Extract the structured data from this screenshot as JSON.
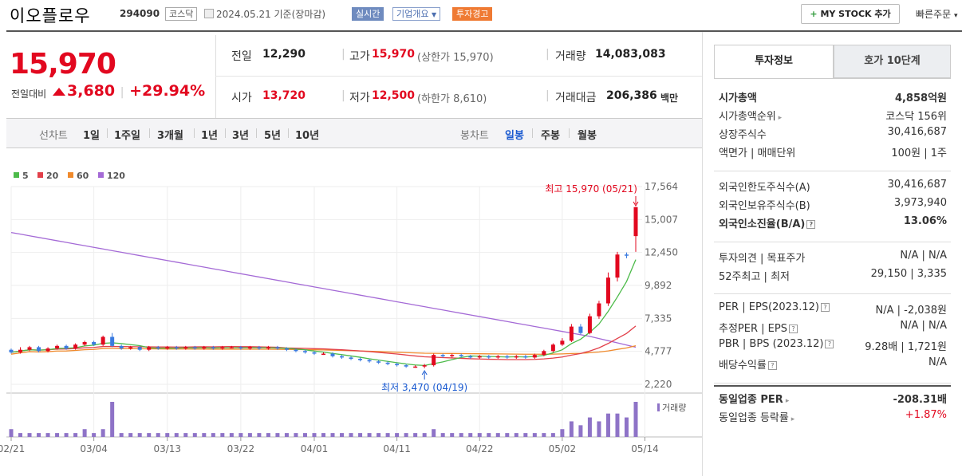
{
  "header": {
    "company_name": "이오플로우",
    "code": "294090",
    "market": "코스닥",
    "date": "2024.05.21 기준(장마감)",
    "badge_realtime": "실시간",
    "badge_overview": "기업개요",
    "badge_warning": "투자경고",
    "mystock_label": "MY STOCK 추가",
    "quick_order": "빠른주문"
  },
  "quote": {
    "price": "15,970",
    "prev_label": "전일대비",
    "change": "3,680",
    "change_pct": "+29.94%",
    "prev_close_label": "전일",
    "prev_close": "12,290",
    "high_label": "고가",
    "high": "15,970",
    "upper_limit": "(상한가 15,970)",
    "volume_label": "거래량",
    "volume": "14,083,083",
    "open_label": "시가",
    "open": "13,720",
    "low_label": "저가",
    "low": "12,500",
    "lower_limit": "(하한가 8,610)",
    "amount_label": "거래대금",
    "amount": "206,386",
    "amount_unit": "백만"
  },
  "period_tabs": {
    "label": "선차트",
    "items": [
      "1일",
      "1주일",
      "3개월",
      "1년",
      "3년",
      "5년",
      "10년"
    ],
    "candle_label": "봉차트",
    "candle_items": [
      "일봉",
      "주봉",
      "월봉"
    ]
  },
  "chart_data": {
    "type": "candlestick",
    "legend": [
      "5",
      "20",
      "60",
      "120"
    ],
    "colors": {
      "ma5": "#4dbb4a",
      "ma20": "#e2404a",
      "ma60": "#f08a2c",
      "ma120": "#a46ad6",
      "up": "#e2081f",
      "down": "#3b7be0"
    },
    "y_ticks": [
      "17,564",
      "15,007",
      "12,450",
      "9,892",
      "7,335",
      "4,777",
      "2,220"
    ],
    "x_ticks": [
      "02/21",
      "03/04",
      "03/13",
      "03/22",
      "04/01",
      "04/11",
      "04/22",
      "05/02",
      "05/14"
    ],
    "ylim": [
      2220,
      17564
    ],
    "high_annotation": "최고 15,970 (05/21)",
    "low_annotation": "최저 3,470 (04/19)",
    "volume_label": "거래량",
    "candles": [
      [
        4900,
        4700,
        5000,
        4600
      ],
      [
        4700,
        4900,
        5100,
        4600
      ],
      [
        4900,
        5100,
        5200,
        4800
      ],
      [
        5100,
        4800,
        5200,
        4700
      ],
      [
        4800,
        5000,
        5100,
        4700
      ],
      [
        5000,
        5200,
        5300,
        4900
      ],
      [
        5200,
        5000,
        5300,
        4900
      ],
      [
        5000,
        5300,
        5400,
        4900
      ],
      [
        5300,
        5500,
        5600,
        5200
      ],
      [
        5500,
        5300,
        5600,
        5200
      ],
      [
        5300,
        5900,
        6000,
        5200
      ],
      [
        5900,
        5200,
        6200,
        5100
      ],
      [
        5200,
        5000,
        5300,
        4900
      ],
      [
        5000,
        5100,
        5200,
        4900
      ],
      [
        5100,
        4900,
        5200,
        4800
      ],
      [
        4900,
        5100,
        5200,
        4800
      ],
      [
        5100,
        5000,
        5200,
        4900
      ],
      [
        5000,
        5100,
        5200,
        4900
      ],
      [
        5100,
        5000,
        5200,
        4900
      ],
      [
        5000,
        5100,
        5200,
        4900
      ],
      [
        5100,
        5000,
        5200,
        4900
      ],
      [
        5000,
        5100,
        5200,
        4900
      ],
      [
        5100,
        5000,
        5200,
        4900
      ],
      [
        5000,
        5100,
        5200,
        4900
      ],
      [
        5100,
        5100,
        5200,
        5000
      ],
      [
        5100,
        5000,
        5200,
        4900
      ],
      [
        5000,
        5100,
        5200,
        4900
      ],
      [
        5100,
        5000,
        5200,
        4900
      ],
      [
        5000,
        5100,
        5200,
        4900
      ],
      [
        5100,
        5000,
        5200,
        4900
      ],
      [
        5000,
        4900,
        5100,
        4800
      ],
      [
        4900,
        4800,
        5000,
        4700
      ],
      [
        4800,
        4700,
        4900,
        4600
      ],
      [
        4700,
        4600,
        4800,
        4500
      ],
      [
        4600,
        4600,
        4700,
        4500
      ],
      [
        4600,
        4400,
        4700,
        4300
      ],
      [
        4400,
        4300,
        4500,
        4200
      ],
      [
        4300,
        4200,
        4400,
        4100
      ],
      [
        4200,
        4100,
        4300,
        4000
      ],
      [
        4100,
        4000,
        4200,
        3900
      ],
      [
        4000,
        3900,
        4100,
        3800
      ],
      [
        3900,
        3800,
        4000,
        3700
      ],
      [
        3800,
        3700,
        3900,
        3600
      ],
      [
        3700,
        3600,
        3800,
        3500
      ],
      [
        3600,
        3600,
        3700,
        3500
      ],
      [
        3600,
        3700,
        3800,
        3470
      ],
      [
        3700,
        4500,
        4600,
        3600
      ],
      [
        4500,
        4400,
        4600,
        4300
      ],
      [
        4400,
        4500,
        4600,
        4300
      ],
      [
        4500,
        4400,
        4600,
        4300
      ],
      [
        4400,
        4300,
        4500,
        4200
      ],
      [
        4300,
        4400,
        4500,
        4200
      ],
      [
        4400,
        4300,
        4500,
        4200
      ],
      [
        4300,
        4400,
        4500,
        4200
      ],
      [
        4400,
        4300,
        4500,
        4200
      ],
      [
        4300,
        4400,
        4500,
        4200
      ],
      [
        4400,
        4300,
        4500,
        4200
      ],
      [
        4300,
        4500,
        4600,
        4200
      ],
      [
        4500,
        4800,
        4900,
        4400
      ],
      [
        4800,
        5300,
        5400,
        4700
      ],
      [
        5300,
        5600,
        5800,
        5200
      ],
      [
        5600,
        6700,
        6900,
        5500
      ],
      [
        6700,
        6200,
        6900,
        6100
      ],
      [
        6200,
        7500,
        7700,
        6100
      ],
      [
        7500,
        8500,
        8700,
        7300
      ],
      [
        8500,
        10500,
        10900,
        8300
      ],
      [
        10500,
        12290,
        12500,
        10200
      ],
      [
        12290,
        12200,
        12450,
        12000
      ],
      [
        13720,
        15970,
        15970,
        12500
      ]
    ],
    "volumes": [
      2,
      1,
      1,
      1,
      1,
      1,
      1,
      1,
      2,
      1,
      2,
      9,
      1,
      1,
      1,
      1,
      1,
      1,
      1,
      1,
      1,
      1,
      1,
      1,
      1,
      1,
      1,
      1,
      1,
      1,
      1,
      1,
      1,
      1,
      1,
      1,
      1,
      1,
      1,
      1,
      1,
      1,
      1,
      1,
      1,
      1,
      2,
      1,
      1,
      1,
      1,
      1,
      1,
      1,
      1,
      1,
      1,
      1,
      1,
      1,
      2,
      4,
      3,
      5,
      4,
      6,
      6,
      5,
      9
    ]
  },
  "right_panel": {
    "tab_active": "투자정보",
    "tab_inactive": "호가 10단계",
    "rows1": [
      {
        "label": "시가총액",
        "value": "4,858억원",
        "bold": true
      },
      {
        "label": "시가총액순위",
        "value": "코스닥 156위"
      },
      {
        "label": "상장주식수",
        "value": "30,416,687"
      },
      {
        "label": "액면가 | 매매단위",
        "value": "100원 | 1주"
      }
    ],
    "rows2": [
      {
        "label": "외국인한도주식수(A)",
        "value": "30,416,687"
      },
      {
        "label": "외국인보유주식수(B)",
        "value": "3,973,940"
      },
      {
        "label": "외국인소진율(B/A)",
        "value": "13.06%",
        "bold": true
      }
    ],
    "rows3": [
      {
        "label": "투자의견 | 목표주가",
        "value": "N/A | N/A"
      },
      {
        "label": "52주최고 | 최저",
        "value": "29,150 | 3,335"
      }
    ],
    "rows4": [
      {
        "label": "PER | EPS(2023.12)",
        "value": "N/A | -2,038원"
      },
      {
        "label": "추정PER | EPS",
        "value": "N/A | N/A"
      },
      {
        "label": "PBR | BPS (2023.12)",
        "value": "9.28배 | 1,721원"
      },
      {
        "label": "배당수익률",
        "value": "N/A"
      }
    ],
    "rows5": [
      {
        "label": "동일업종 PER",
        "value": "-208.31배",
        "bold": true
      },
      {
        "label": "동일업종 등락률",
        "value": "+1.87%",
        "red": true
      }
    ]
  }
}
